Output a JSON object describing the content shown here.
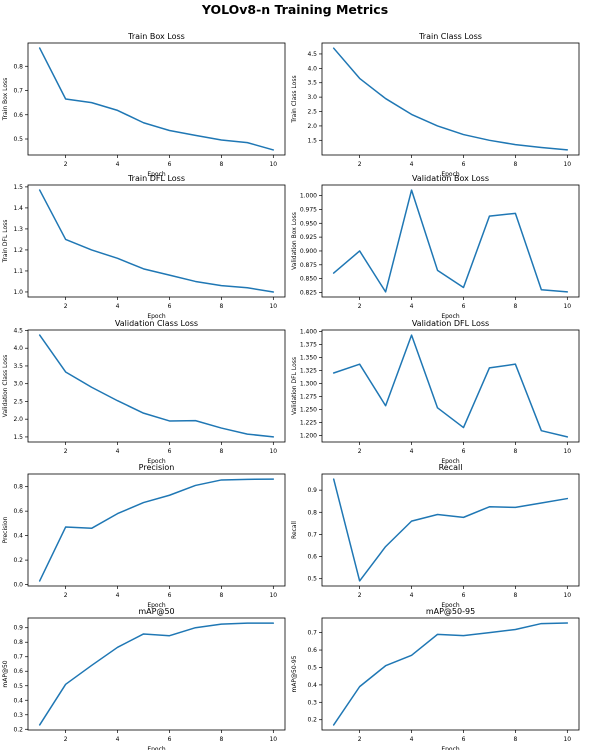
{
  "figure_title": "YOLOv8-n Training Metrics",
  "colors": {
    "line": "#1f77b4"
  },
  "chart_data": [
    {
      "type": "line",
      "title": "Train Box Loss",
      "xlabel": "Epoch",
      "ylabel": "Train Box Loss",
      "x": [
        1,
        2,
        3,
        4,
        5,
        6,
        7,
        8,
        9,
        10
      ],
      "values": [
        0.875,
        0.665,
        0.65,
        0.618,
        0.567,
        0.535,
        0.515,
        0.496,
        0.485,
        0.455
      ],
      "xticks": [
        "2",
        "4",
        "6",
        "8",
        "10"
      ],
      "xtick_values": [
        2,
        4,
        6,
        8,
        10
      ],
      "yticks": [
        "0.5",
        "0.6",
        "0.7",
        "0.8"
      ],
      "ytick_values": [
        0.5,
        0.6,
        0.7,
        0.8
      ],
      "xlim": [
        0.55,
        10.45
      ],
      "ylim": [
        0.434,
        0.896
      ],
      "grid": false
    },
    {
      "type": "line",
      "title": "Train Class Loss",
      "xlabel": "Epoch",
      "ylabel": "Train Class Loss",
      "x": [
        1,
        2,
        3,
        4,
        5,
        6,
        7,
        8,
        9,
        10
      ],
      "values": [
        4.7,
        3.65,
        2.95,
        2.4,
        2.0,
        1.7,
        1.5,
        1.35,
        1.25,
        1.17
      ],
      "xticks": [
        "2",
        "4",
        "6",
        "8",
        "10"
      ],
      "xtick_values": [
        2,
        4,
        6,
        8,
        10
      ],
      "yticks": [
        "1.5",
        "2.0",
        "2.5",
        "3.0",
        "3.5",
        "4.0",
        "4.5"
      ],
      "ytick_values": [
        1.5,
        2.0,
        2.5,
        3.0,
        3.5,
        4.0,
        4.5
      ],
      "xlim": [
        0.55,
        10.45
      ],
      "ylim": [
        0.99,
        4.88
      ],
      "grid": false
    },
    {
      "type": "line",
      "title": "Train DFL Loss",
      "xlabel": "Epoch",
      "ylabel": "Train DFL Loss",
      "x": [
        1,
        2,
        3,
        4,
        5,
        6,
        7,
        8,
        9,
        10
      ],
      "values": [
        1.485,
        1.25,
        1.2,
        1.16,
        1.11,
        1.08,
        1.05,
        1.03,
        1.02,
        1.0
      ],
      "xticks": [
        "2",
        "4",
        "6",
        "8",
        "10"
      ],
      "xtick_values": [
        2,
        4,
        6,
        8,
        10
      ],
      "yticks": [
        "1.0",
        "1.1",
        "1.2",
        "1.3",
        "1.4",
        "1.5"
      ],
      "ytick_values": [
        1.0,
        1.1,
        1.2,
        1.3,
        1.4,
        1.5
      ],
      "xlim": [
        0.55,
        10.45
      ],
      "ylim": [
        0.976,
        1.509
      ],
      "grid": false
    },
    {
      "type": "line",
      "title": "Validation Box Loss",
      "xlabel": "Epoch",
      "ylabel": "Validation Box Loss",
      "x": [
        1,
        2,
        3,
        4,
        5,
        6,
        7,
        8,
        9,
        10
      ],
      "values": [
        0.86,
        0.9,
        0.826,
        1.01,
        0.865,
        0.834,
        0.963,
        0.968,
        0.83,
        0.826
      ],
      "xticks": [
        "2",
        "4",
        "6",
        "8",
        "10"
      ],
      "xtick_values": [
        2,
        4,
        6,
        8,
        10
      ],
      "yticks": [
        "0.825",
        "0.850",
        "0.875",
        "0.900",
        "0.925",
        "0.950",
        "0.975",
        "1.000"
      ],
      "ytick_values": [
        0.825,
        0.85,
        0.875,
        0.9,
        0.925,
        0.95,
        0.975,
        1.0
      ],
      "xlim": [
        0.55,
        10.45
      ],
      "ylim": [
        0.8168,
        1.0192
      ],
      "grid": false
    },
    {
      "type": "line",
      "title": "Validation Class Loss",
      "xlabel": "Epoch",
      "ylabel": "Validation Class Loss",
      "x": [
        1,
        2,
        3,
        4,
        5,
        6,
        7,
        8,
        9,
        10
      ],
      "values": [
        4.37,
        3.33,
        2.9,
        2.52,
        2.17,
        1.95,
        1.96,
        1.75,
        1.58,
        1.5
      ],
      "xticks": [
        "2",
        "4",
        "6",
        "8",
        "10"
      ],
      "xtick_values": [
        2,
        4,
        6,
        8,
        10
      ],
      "yticks": [
        "1.5",
        "2.0",
        "2.5",
        "3.0",
        "3.5",
        "4.0",
        "4.5"
      ],
      "ytick_values": [
        1.5,
        2.0,
        2.5,
        3.0,
        3.5,
        4.0,
        4.5
      ],
      "xlim": [
        0.55,
        10.45
      ],
      "ylim": [
        1.357,
        4.513
      ],
      "grid": false
    },
    {
      "type": "line",
      "title": "Validation DFL Loss",
      "xlabel": "Epoch",
      "ylabel": "Validation DFL Loss",
      "x": [
        1,
        2,
        3,
        4,
        5,
        6,
        7,
        8,
        9,
        10
      ],
      "values": [
        1.32,
        1.337,
        1.257,
        1.393,
        1.253,
        1.215,
        1.33,
        1.337,
        1.209,
        1.197
      ],
      "xticks": [
        "2",
        "4",
        "6",
        "8",
        "10"
      ],
      "xtick_values": [
        2,
        4,
        6,
        8,
        10
      ],
      "yticks": [
        "1.200",
        "1.225",
        "1.250",
        "1.275",
        "1.300",
        "1.325",
        "1.350",
        "1.375",
        "1.400"
      ],
      "ytick_values": [
        1.2,
        1.225,
        1.25,
        1.275,
        1.3,
        1.325,
        1.35,
        1.375,
        1.4
      ],
      "xlim": [
        0.55,
        10.45
      ],
      "ylim": [
        1.1872,
        1.4028
      ],
      "grid": false
    },
    {
      "type": "line",
      "title": "Precision",
      "xlabel": "Epoch",
      "ylabel": "Precision",
      "x": [
        1,
        2,
        3,
        4,
        5,
        6,
        7,
        8,
        9,
        10
      ],
      "values": [
        0.03,
        0.47,
        0.46,
        0.58,
        0.67,
        0.73,
        0.81,
        0.855,
        0.86,
        0.862
      ],
      "xticks": [
        "2",
        "4",
        "6",
        "8",
        "10"
      ],
      "xtick_values": [
        2,
        4,
        6,
        8,
        10
      ],
      "yticks": [
        "0.0",
        "0.2",
        "0.4",
        "0.6",
        "0.8"
      ],
      "ytick_values": [
        0.0,
        0.2,
        0.4,
        0.6,
        0.8
      ],
      "xlim": [
        0.55,
        10.45
      ],
      "ylim": [
        -0.0116,
        0.9036
      ],
      "grid": false
    },
    {
      "type": "line",
      "title": "Recall",
      "xlabel": "Epoch",
      "ylabel": "Recall",
      "x": [
        1,
        2,
        3,
        4,
        5,
        6,
        7,
        8,
        9,
        10
      ],
      "values": [
        0.95,
        0.49,
        0.645,
        0.76,
        0.79,
        0.777,
        0.825,
        0.822,
        0.842,
        0.862
      ],
      "xticks": [
        "2",
        "4",
        "6",
        "8",
        "10"
      ],
      "xtick_values": [
        2,
        4,
        6,
        8,
        10
      ],
      "yticks": [
        "0.5",
        "0.6",
        "0.7",
        "0.8",
        "0.9"
      ],
      "ytick_values": [
        0.5,
        0.6,
        0.7,
        0.8,
        0.9
      ],
      "xlim": [
        0.55,
        10.45
      ],
      "ylim": [
        0.467,
        0.973
      ],
      "grid": false
    },
    {
      "type": "line",
      "title": "mAP@50",
      "xlabel": "Epoch",
      "ylabel": "mAP@50",
      "x": [
        1,
        2,
        3,
        4,
        5,
        6,
        7,
        8,
        9,
        10
      ],
      "values": [
        0.23,
        0.51,
        0.64,
        0.765,
        0.857,
        0.845,
        0.9,
        0.925,
        0.932,
        0.932
      ],
      "xticks": [
        "2",
        "4",
        "6",
        "8",
        "10"
      ],
      "xtick_values": [
        2,
        4,
        6,
        8,
        10
      ],
      "yticks": [
        "0.2",
        "0.3",
        "0.4",
        "0.5",
        "0.6",
        "0.7",
        "0.8",
        "0.9"
      ],
      "ytick_values": [
        0.2,
        0.3,
        0.4,
        0.5,
        0.6,
        0.7,
        0.8,
        0.9
      ],
      "xlim": [
        0.55,
        10.45
      ],
      "ylim": [
        0.195,
        0.967
      ],
      "grid": false
    },
    {
      "type": "line",
      "title": "mAP@50-95",
      "xlabel": "Epoch",
      "ylabel": "mAP@50-95",
      "x": [
        1,
        2,
        3,
        4,
        5,
        6,
        7,
        8,
        9,
        10
      ],
      "values": [
        0.17,
        0.39,
        0.51,
        0.57,
        0.69,
        0.683,
        0.7,
        0.718,
        0.752,
        0.755
      ],
      "xticks": [
        "2",
        "4",
        "6",
        "8",
        "10"
      ],
      "xtick_values": [
        2,
        4,
        6,
        8,
        10
      ],
      "yticks": [
        "0.2",
        "0.3",
        "0.4",
        "0.5",
        "0.6",
        "0.7"
      ],
      "ytick_values": [
        0.2,
        0.3,
        0.4,
        0.5,
        0.6,
        0.7
      ],
      "xlim": [
        0.55,
        10.45
      ],
      "ylim": [
        0.141,
        0.784
      ],
      "grid": false
    }
  ]
}
